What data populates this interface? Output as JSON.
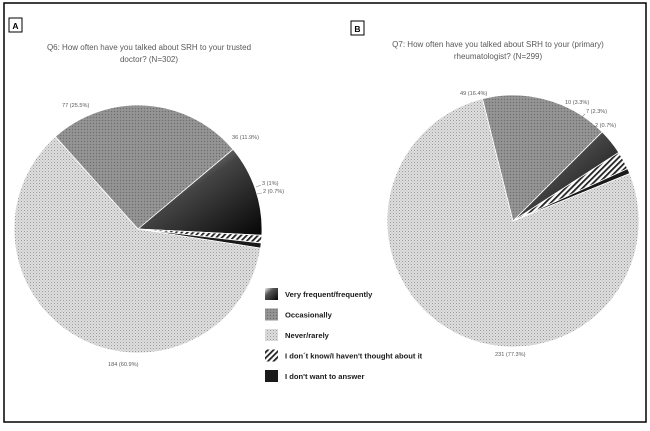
{
  "chart_data": [
    {
      "type": "pie",
      "panel": "A",
      "title_lines": [
        "Q6: How often have you talked about SRH to your trusted",
        "doctor? (N=302)"
      ],
      "slices": [
        {
          "category": "Very frequent/frequently",
          "value": 36,
          "label": "36 (11.9%)"
        },
        {
          "category": "I don´t know/I haven't thought about it",
          "value": 3,
          "label": "3 (1%)"
        },
        {
          "category": "I don't want to answer",
          "value": 2,
          "label": "2 (0.7%)"
        },
        {
          "category": "Never/rarely",
          "value": 184,
          "label": "184 (60.9%)"
        },
        {
          "category": "Occasionally",
          "value": 77,
          "label": "77 (25.5%)"
        }
      ]
    },
    {
      "type": "pie",
      "panel": "B",
      "title_lines": [
        "Q7: How often have you talked about SRH to your (primary)",
        "rheumatologist? (N=299)"
      ],
      "slices": [
        {
          "category": "Very frequent/frequently",
          "value": 10,
          "label": "10 (3.3%)"
        },
        {
          "category": "I don´t know/I haven't thought about it",
          "value": 7,
          "label": "7 (2.3%)"
        },
        {
          "category": "I don't want to answer",
          "value": 2,
          "label": "2 (0.7%)"
        },
        {
          "category": "Never/rarely",
          "value": 231,
          "label": "231 (77.3%)"
        },
        {
          "category": "Occasionally",
          "value": 49,
          "label": "49 (16.4%)"
        }
      ]
    }
  ],
  "legend": [
    {
      "key": "Very frequent/frequently",
      "label": "Very frequent/frequently",
      "pattern": "dark-gradient"
    },
    {
      "key": "Occasionally",
      "label": "Occasionally",
      "pattern": "medium-gray"
    },
    {
      "key": "Never/rarely",
      "label": "Never/rarely",
      "pattern": "light-dots"
    },
    {
      "key": "I don´t know/I haven't thought about it",
      "label": "I don´t know/I haven't thought about it",
      "pattern": "diagonal-stripes"
    },
    {
      "key": "I don't want to answer",
      "label": "I don't want to answer",
      "pattern": "dark-solid"
    }
  ],
  "colors": {
    "border": "#000000",
    "occasionally": "#8f8f8f",
    "never": "#d2d2d2",
    "very_frequent_dark": "#111111",
    "very_frequent_light": "#f2f2f2",
    "dark_solid": "#1a1a1a",
    "title_text": "#595959",
    "label_text": "#595959"
  }
}
